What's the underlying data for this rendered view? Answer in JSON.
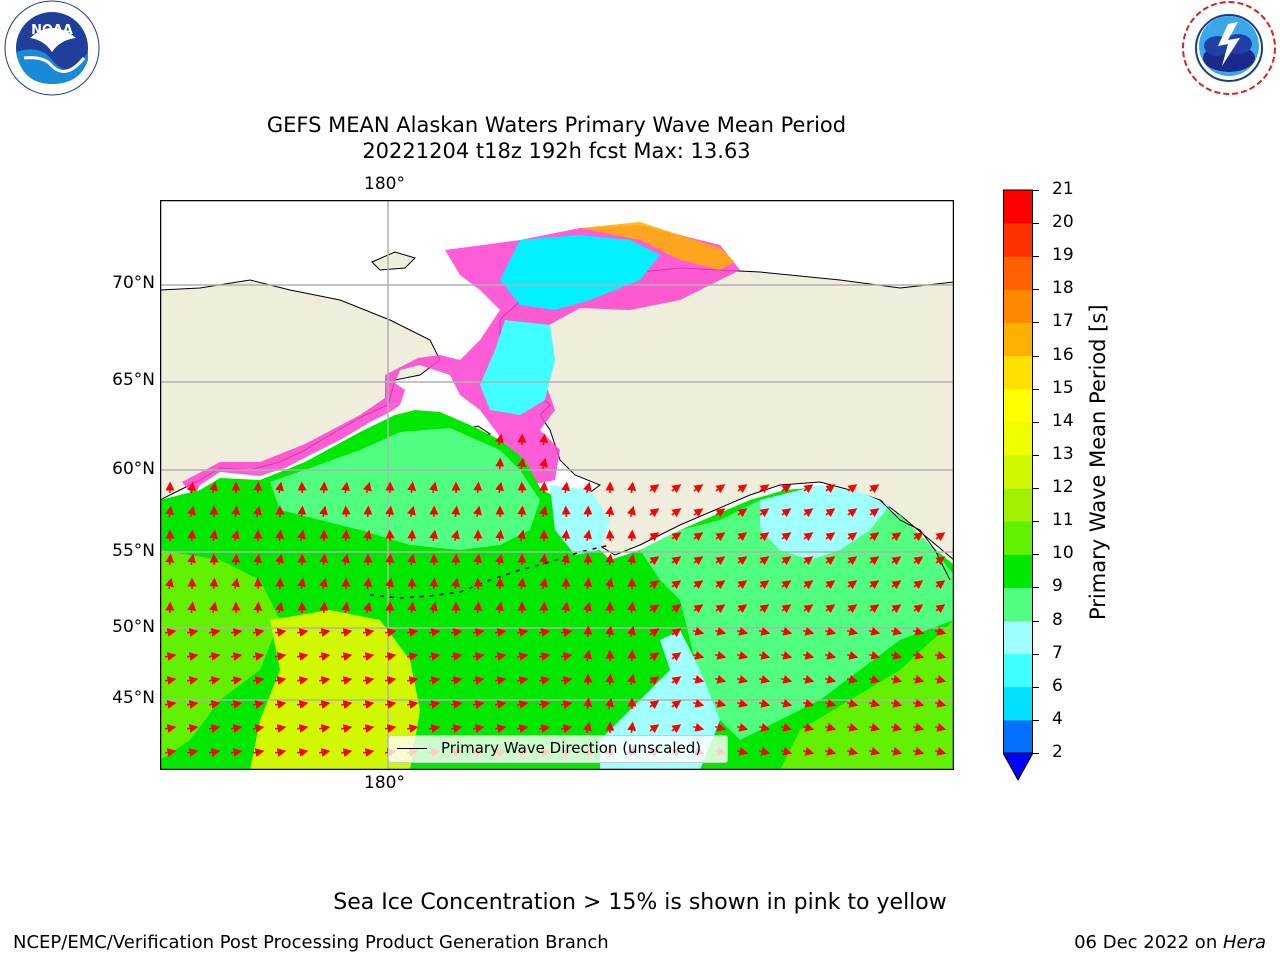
{
  "header": {
    "title_line1": "GEFS MEAN Alaskan Waters Primary Wave Mean Period",
    "title_line2": "20221204 t18z 192h fcst   Max: 13.63"
  },
  "logos": {
    "noaa_text": "NOAA",
    "noaa_ring": "NATIONAL OCEANIC AND ATMOSPHERIC ADMINISTRATION · U.S. DEPARTMENT OF COMMERCE",
    "nws_ring": "NATIONAL WEATHER SERVICE"
  },
  "map": {
    "lon_label_top": "180°",
    "lon_label_bottom": "180°",
    "lat_labels": [
      "70°N",
      "65°N",
      "60°N",
      "55°N",
      "50°N",
      "45°N"
    ],
    "legend_label": "Primary Wave Direction (unscaled)",
    "arrow_color": "#ff0000",
    "land_color": "#efeddb",
    "grid_color": "#b0b0b0"
  },
  "colorbar": {
    "label": "Primary Wave Mean Period [s]",
    "ticks": [
      "2",
      "4",
      "6",
      "7",
      "8",
      "9",
      "10",
      "11",
      "12",
      "13",
      "14",
      "15",
      "16",
      "17",
      "18",
      "19",
      "20",
      "21"
    ],
    "colors": [
      "#0070ff",
      "#00e0ff",
      "#40ffff",
      "#a0ffff",
      "#50ff80",
      "#00e800",
      "#60f000",
      "#a0f000",
      "#d0f800",
      "#f0ff00",
      "#ffff00",
      "#ffe000",
      "#ffb000",
      "#ff8800",
      "#ff6000",
      "#ff3000",
      "#ff0000"
    ],
    "under_color": "#0000ff"
  },
  "notes": {
    "sea_ice": "Sea Ice Concentration > 15% is shown in pink to yellow"
  },
  "footer": {
    "left": "NCEP/EMC/Verification Post Processing Product Generation Branch",
    "date": "06 Dec 2022 on ",
    "machine": "Hera"
  }
}
